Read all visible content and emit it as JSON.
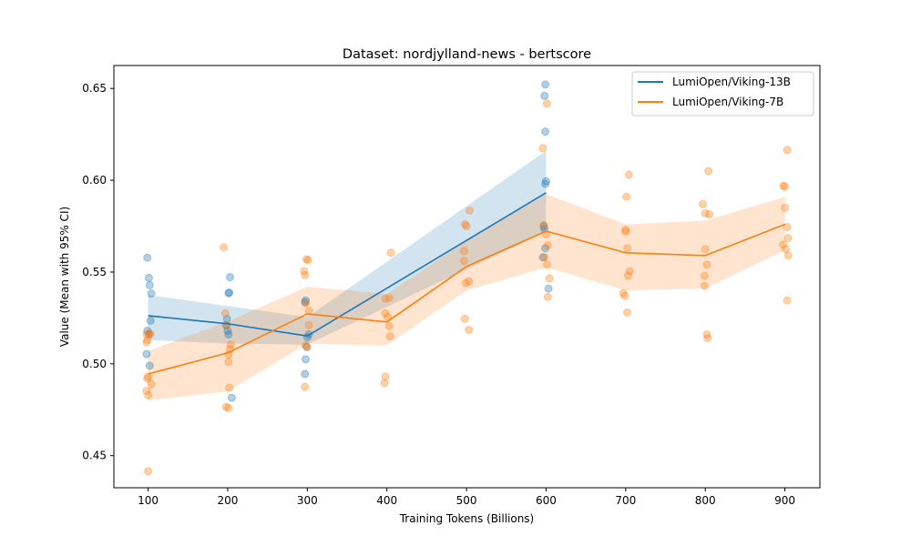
{
  "chart_data": {
    "type": "line",
    "title": "Dataset: nordjylland-news - bertscore",
    "xlabel": "Training Tokens (Billions)",
    "ylabel": "Value (Mean with 95% CI)",
    "xlim": [
      57,
      944
    ],
    "ylim": [
      0.4325,
      0.6625
    ],
    "xticks": [
      100,
      200,
      300,
      400,
      500,
      600,
      700,
      800,
      900
    ],
    "yticks": [
      0.45,
      0.5,
      0.55,
      0.6,
      0.65
    ],
    "ytick_labels": [
      "0.45",
      "0.50",
      "0.55",
      "0.60",
      "0.65"
    ],
    "grid": false,
    "legend_position": "top-right",
    "series": [
      {
        "name": "LumiOpen/Viking-13B",
        "color": "#1f77b4",
        "x": [
          100,
          200,
          300,
          600
        ],
        "mean": [
          0.5262,
          0.5218,
          0.5152,
          0.5932
        ],
        "ci_lower": [
          0.513,
          0.511,
          0.5105,
          0.572
        ],
        "ci_upper": [
          0.5375,
          0.5315,
          0.5255,
          0.616
        ],
        "points": [
          [
            99,
            0.5578
          ],
          [
            101,
            0.5468
          ],
          [
            102,
            0.5428
          ],
          [
            104,
            0.5383
          ],
          [
            103,
            0.5235
          ],
          [
            99,
            0.518
          ],
          [
            101,
            0.516
          ],
          [
            98,
            0.5053
          ],
          [
            102,
            0.499
          ],
          [
            203,
            0.5472
          ],
          [
            202,
            0.5388
          ],
          [
            201,
            0.5385
          ],
          [
            199,
            0.5245
          ],
          [
            198,
            0.521
          ],
          [
            200,
            0.518
          ],
          [
            201,
            0.516
          ],
          [
            205,
            0.4815
          ],
          [
            298,
            0.5345
          ],
          [
            297,
            0.5335
          ],
          [
            302,
            0.516
          ],
          [
            300,
            0.5145
          ],
          [
            299,
            0.5093
          ],
          [
            298,
            0.5025
          ],
          [
            297,
            0.4945
          ],
          [
            599,
            0.6522
          ],
          [
            598,
            0.646
          ],
          [
            599,
            0.6265
          ],
          [
            600,
            0.5995
          ],
          [
            599,
            0.598
          ],
          [
            597,
            0.575
          ],
          [
            598,
            0.5735
          ],
          [
            599,
            0.563
          ],
          [
            596,
            0.558
          ],
          [
            603,
            0.541
          ]
        ]
      },
      {
        "name": "LumiOpen/Viking-7B",
        "color": "#ff7f0e",
        "x": [
          100,
          200,
          300,
          400,
          500,
          600,
          700,
          800,
          900
        ],
        "mean": [
          0.4945,
          0.506,
          0.5272,
          0.5228,
          0.553,
          0.5723,
          0.5605,
          0.559,
          0.576
        ],
        "ci_lower": [
          0.48,
          0.485,
          0.511,
          0.51,
          0.54,
          0.5525,
          0.54,
          0.541,
          0.562
        ],
        "ci_upper": [
          0.507,
          0.523,
          0.542,
          0.538,
          0.567,
          0.5925,
          0.576,
          0.578,
          0.591
        ],
        "points": [
          [
            101,
            0.5165
          ],
          [
            98,
            0.516
          ],
          [
            99,
            0.513
          ],
          [
            103,
            0.5163
          ],
          [
            98,
            0.5118
          ],
          [
            100,
            0.493
          ],
          [
            99,
            0.492
          ],
          [
            104,
            0.489
          ],
          [
            98,
            0.4853
          ],
          [
            100,
            0.483
          ],
          [
            100,
            0.4415
          ],
          [
            195,
            0.5635
          ],
          [
            197,
            0.5275
          ],
          [
            199,
            0.521
          ],
          [
            204,
            0.5105
          ],
          [
            203,
            0.508
          ],
          [
            201,
            0.505
          ],
          [
            201,
            0.501
          ],
          [
            202,
            0.487
          ],
          [
            198,
            0.4765
          ],
          [
            201,
            0.476
          ],
          [
            299,
            0.557
          ],
          [
            301,
            0.5565
          ],
          [
            296,
            0.5505
          ],
          [
            297,
            0.5483
          ],
          [
            298,
            0.533
          ],
          [
            302,
            0.529
          ],
          [
            302,
            0.521
          ],
          [
            298,
            0.51
          ],
          [
            300,
            0.509
          ],
          [
            297,
            0.4875
          ],
          [
            405,
            0.5605
          ],
          [
            398,
            0.5355
          ],
          [
            403,
            0.536
          ],
          [
            398,
            0.5275
          ],
          [
            401,
            0.5255
          ],
          [
            403,
            0.5205
          ],
          [
            404,
            0.515
          ],
          [
            398,
            0.493
          ],
          [
            397,
            0.4895
          ],
          [
            504,
            0.5835
          ],
          [
            498,
            0.576
          ],
          [
            500,
            0.575
          ],
          [
            497,
            0.5615
          ],
          [
            497,
            0.556
          ],
          [
            503,
            0.545
          ],
          [
            499,
            0.544
          ],
          [
            498,
            0.5245
          ],
          [
            503,
            0.5185
          ],
          [
            596,
            0.6175
          ],
          [
            601,
            0.6418
          ],
          [
            597,
            0.5755
          ],
          [
            600,
            0.5705
          ],
          [
            602,
            0.5645
          ],
          [
            598,
            0.558
          ],
          [
            601,
            0.554
          ],
          [
            604,
            0.5465
          ],
          [
            602,
            0.5365
          ],
          [
            704,
            0.603
          ],
          [
            701,
            0.591
          ],
          [
            700,
            0.573
          ],
          [
            700,
            0.572
          ],
          [
            702,
            0.563
          ],
          [
            705,
            0.5505
          ],
          [
            703,
            0.548
          ],
          [
            697,
            0.5385
          ],
          [
            699,
            0.537
          ],
          [
            702,
            0.528
          ],
          [
            804,
            0.605
          ],
          [
            797,
            0.587
          ],
          [
            800,
            0.582
          ],
          [
            805,
            0.5815
          ],
          [
            800,
            0.5625
          ],
          [
            802,
            0.554
          ],
          [
            799,
            0.548
          ],
          [
            799,
            0.5425
          ],
          [
            802,
            0.516
          ],
          [
            803,
            0.514
          ],
          [
            903,
            0.6165
          ],
          [
            898,
            0.597
          ],
          [
            900,
            0.5965
          ],
          [
            900,
            0.585
          ],
          [
            903,
            0.5745
          ],
          [
            904,
            0.5685
          ],
          [
            898,
            0.565
          ],
          [
            901,
            0.5625
          ],
          [
            904,
            0.559
          ],
          [
            903,
            0.5345
          ]
        ]
      }
    ]
  }
}
